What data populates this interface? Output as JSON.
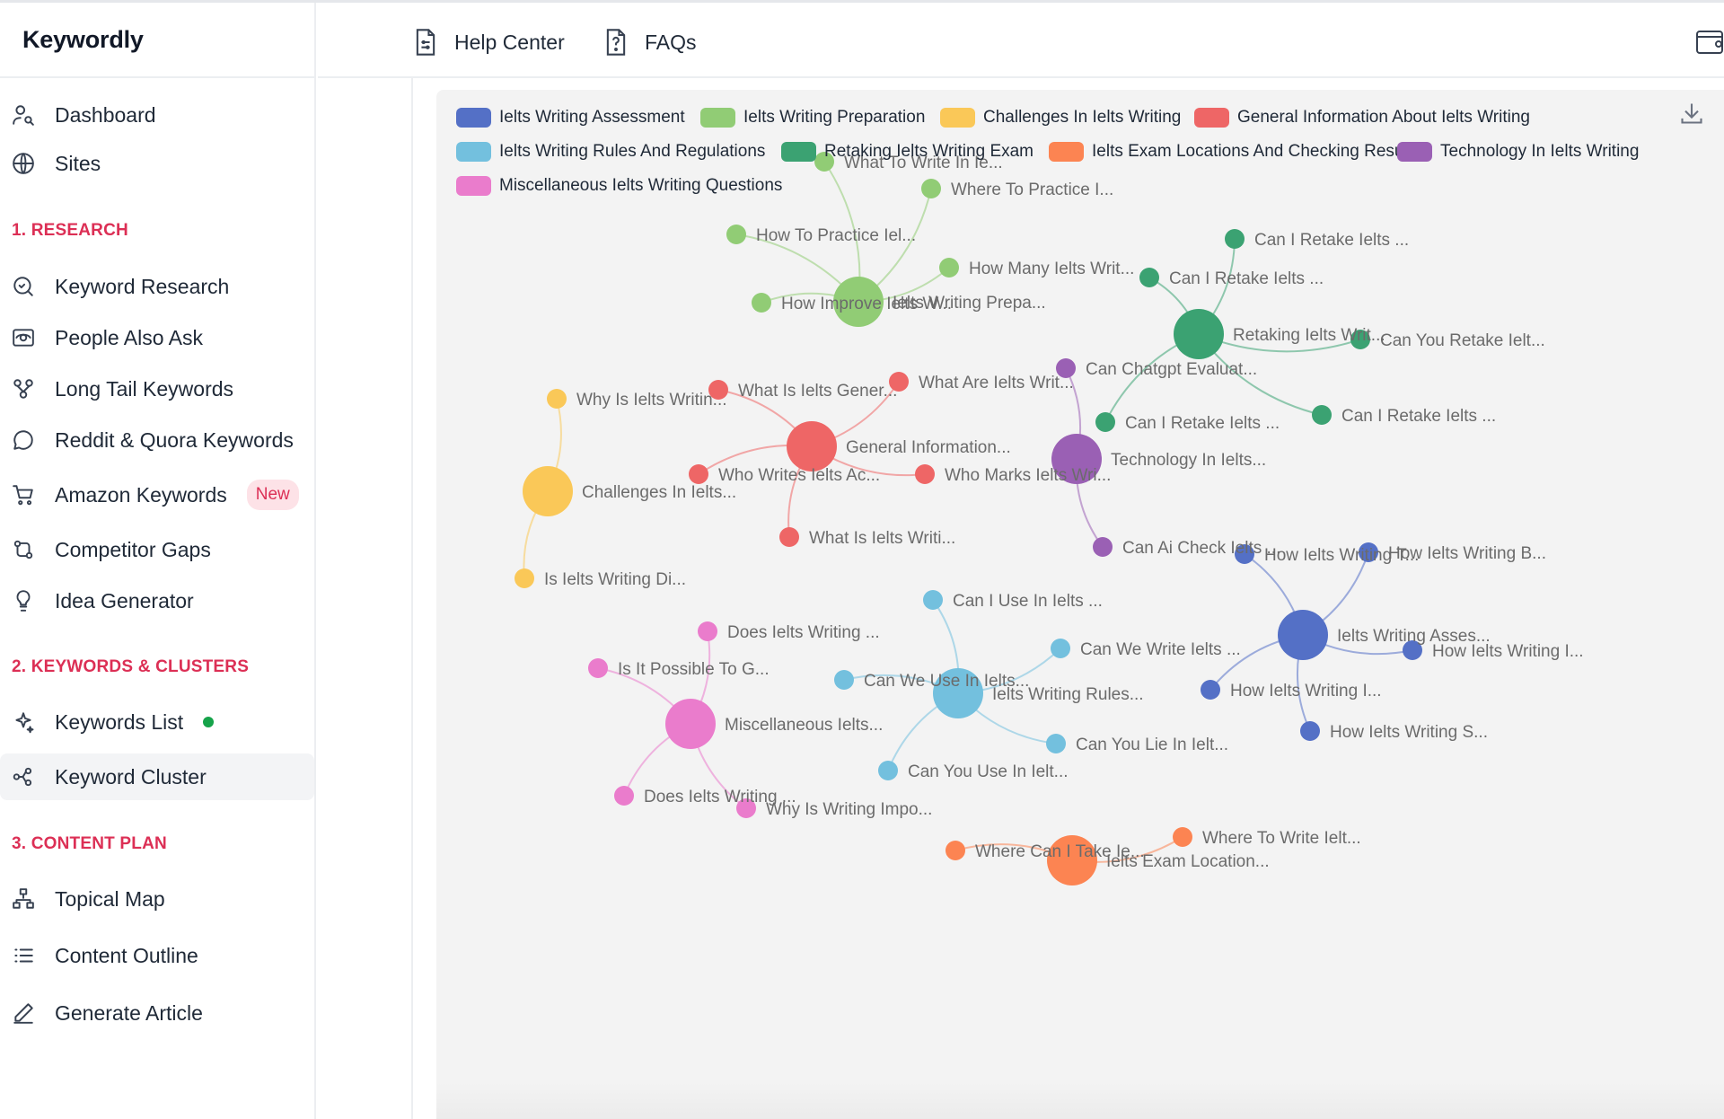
{
  "app": {
    "name": "Keywordly"
  },
  "header": {
    "help_center": "Help Center",
    "faqs": "FAQs"
  },
  "sidebar": {
    "top_items": [
      {
        "label": "Dashboard",
        "icon": "user-search-icon"
      },
      {
        "label": "Sites",
        "icon": "globe-icon"
      }
    ],
    "sections": [
      {
        "title": "1. RESEARCH",
        "items": [
          {
            "label": "Keyword Research",
            "icon": "search-icon"
          },
          {
            "label": "People Also Ask",
            "icon": "eye-icon"
          },
          {
            "label": "Long Tail Keywords",
            "icon": "tree-icon"
          },
          {
            "label": "Reddit & Quora Keywords",
            "icon": "chat-icon"
          },
          {
            "label": "Amazon Keywords",
            "icon": "cart-icon",
            "badge": "New"
          },
          {
            "label": "Competitor Gaps",
            "icon": "git-compare-icon"
          },
          {
            "label": "Idea Generator",
            "icon": "lightbulb-icon"
          }
        ]
      },
      {
        "title": "2. KEYWORDS & CLUSTERS",
        "items": [
          {
            "label": "Keywords List",
            "icon": "sparkle-icon",
            "status_dot": true
          },
          {
            "label": "Keyword Cluster",
            "icon": "cluster-icon",
            "active": true
          }
        ]
      },
      {
        "title": "3. CONTENT PLAN",
        "items": [
          {
            "label": "Topical Map",
            "icon": "sitemap-icon"
          },
          {
            "label": "Content Outline",
            "icon": "list-icon"
          },
          {
            "label": "Generate Article",
            "icon": "pen-icon"
          }
        ]
      }
    ]
  },
  "chart_data": {
    "type": "network",
    "legend": [
      {
        "name": "Ielts Writing Assessment",
        "color": "#5470c6"
      },
      {
        "name": "Ielts Writing Preparation",
        "color": "#91cc75"
      },
      {
        "name": "Challenges In Ielts Writing",
        "color": "#fac858"
      },
      {
        "name": "General Information About Ielts Writing",
        "color": "#ee6666"
      },
      {
        "name": "Ielts Writing Rules And Regulations",
        "color": "#73c0de"
      },
      {
        "name": "Retaking Ielts Writing Exam",
        "color": "#3ba272"
      },
      {
        "name": "Ielts Exam Locations And Checking Results",
        "color": "#fc8452"
      },
      {
        "name": "Technology In Ielts Writing",
        "color": "#9a60b4"
      },
      {
        "name": "Miscellaneous Ielts Writing Questions",
        "color": "#ea7ccc"
      }
    ],
    "clusters": [
      {
        "category": 1,
        "label": "Ielts Writing Prepa...",
        "children": [
          "What To Write In Ie...",
          "Where To Practice I...",
          "How To Practice Iel...",
          "How Many Ielts Writ...",
          "How Improve Ielts W..."
        ]
      },
      {
        "category": 5,
        "label": "Retaking Ielts Writ...",
        "children": [
          "Can I Retake Ielts ...",
          "Can I Retake Ielts ...",
          "Can You Retake Ielt...",
          "Can I Retake Ielts ...",
          "Can I Retake Ielts ..."
        ]
      },
      {
        "category": 2,
        "label": "Challenges In Ielts...",
        "children": [
          "Why Is Ielts Writin...",
          "Is Ielts Writing Di..."
        ]
      },
      {
        "category": 3,
        "label": "General Information...",
        "children": [
          "What Is Ielts Gener...",
          "What Are Ielts Writ...",
          "Who Writes Ielts Ac...",
          "Who Marks Ielts Wri...",
          "What Is Ielts Writi..."
        ]
      },
      {
        "category": 7,
        "label": "Technology In Ielts...",
        "children": [
          "Can Chatgpt Evaluat...",
          "Can Ai Check Ielts ..."
        ]
      },
      {
        "category": 0,
        "label": "Ielts Writing Asses...",
        "children": [
          "How Ielts Writing T...",
          "How Ielts Writing B...",
          "How Ielts Writing I...",
          "How Ielts Writing I...",
          "How Ielts Writing S..."
        ]
      },
      {
        "category": 4,
        "label": "Ielts Writing Rules...",
        "children": [
          "Can I Use In Ielts ...",
          "Can We Write Ielts ...",
          "Can We Use In Ielts...",
          "Can You Lie In Ielt...",
          "Can You Use In Ielt..."
        ]
      },
      {
        "category": 8,
        "label": "Miscellaneous Ielts...",
        "children": [
          "Does Ielts Writing ...",
          "Is It Possible To G...",
          "Does Ielts Writing ...",
          "Why Is Writing Impo..."
        ]
      },
      {
        "category": 6,
        "label": "Ielts Exam Location...",
        "children": [
          "Where Can I Take Ie...",
          "Where To Write Ielt..."
        ]
      }
    ]
  }
}
